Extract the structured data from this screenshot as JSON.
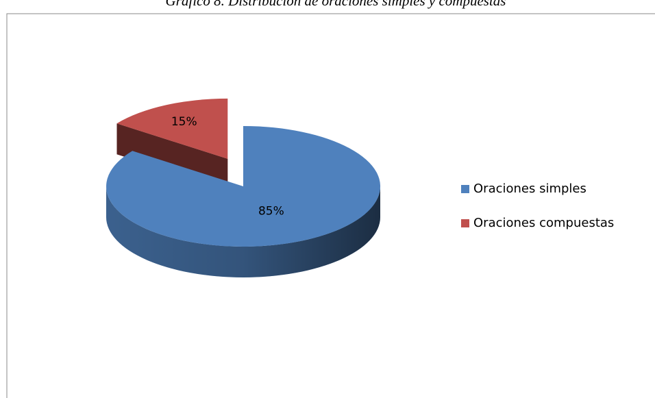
{
  "chart_data": {
    "type": "pie3d",
    "title": "Gráfico 8. Distribución de oraciones simples y compuestas",
    "categories": [
      "Oraciones simples",
      "Oraciones compuestas"
    ],
    "values": [
      85,
      15
    ],
    "value_labels": [
      "85%",
      "15%"
    ],
    "colors": [
      "#4f81bd",
      "#c0504d"
    ],
    "legend": "right"
  }
}
